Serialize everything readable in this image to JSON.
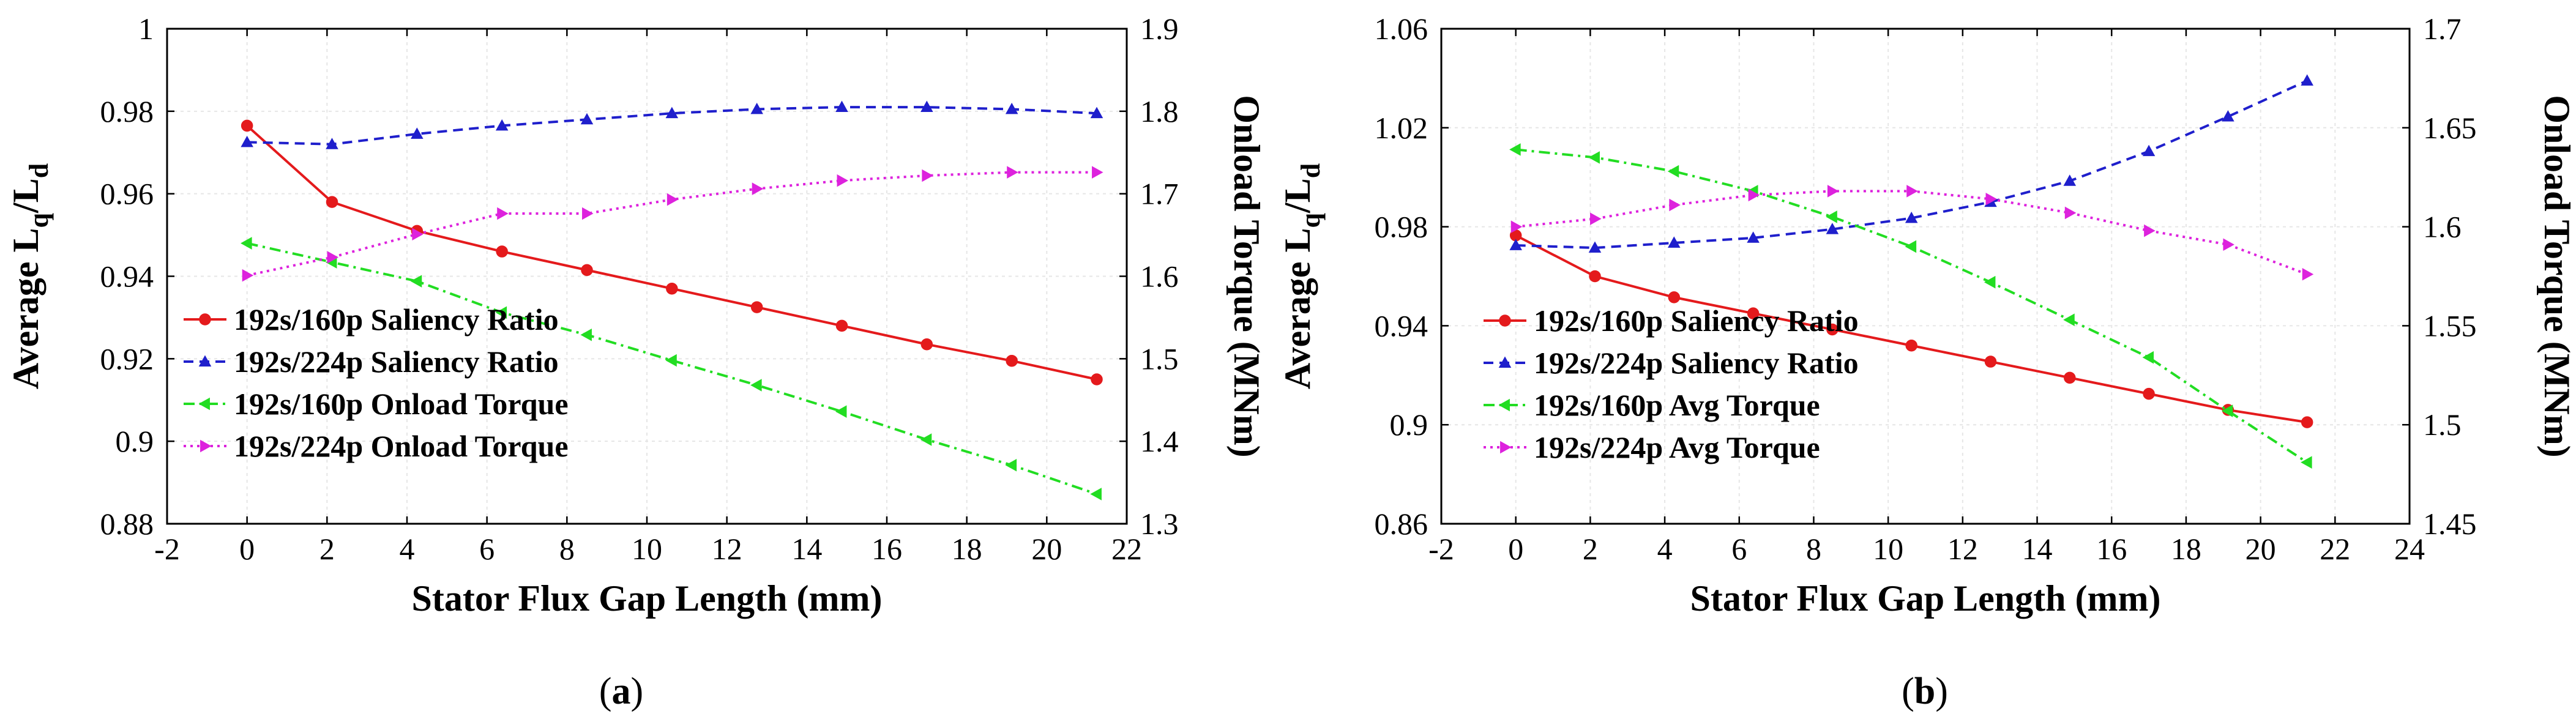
{
  "chart_data": [
    {
      "type": "line",
      "caption": "a",
      "xlabel": "Stator Flux Gap Length (mm)",
      "ylabel_main": "Average L",
      "ylabel_sub1": "q",
      "ylabel_mid": "/L",
      "ylabel_sub2": "d",
      "y2label": "Onload Torque (MNm)",
      "xlim": [
        -2,
        22
      ],
      "ylim": [
        0.88,
        1.0
      ],
      "y2lim": [
        1.3,
        1.9
      ],
      "xticks": [
        "-2",
        "0",
        "2",
        "4",
        "6",
        "8",
        "10",
        "12",
        "14",
        "16",
        "18",
        "20",
        "22"
      ],
      "yticks": [
        "0.88",
        "0.9",
        "0.92",
        "0.94",
        "0.96",
        "0.98",
        "1"
      ],
      "y2ticks": [
        "1.3",
        "1.4",
        "1.5",
        "1.6",
        "1.7",
        "1.8",
        "1.9"
      ],
      "x": [
        0,
        2.125,
        4.25,
        6.375,
        8.5,
        10.625,
        12.75,
        14.875,
        17,
        19.125,
        21.25
      ],
      "series": [
        {
          "name": "192s/160p Saliency Ratio",
          "axis": "left",
          "color": "#e41a1c",
          "dash": "solid",
          "marker": "circle",
          "values": [
            0.9765,
            0.958,
            0.951,
            0.946,
            0.9415,
            0.937,
            0.9325,
            0.928,
            0.9235,
            0.9195,
            0.915
          ]
        },
        {
          "name": "192s/224p Saliency Ratio",
          "axis": "left",
          "color": "#1f1fcc",
          "dash": "dashed",
          "marker": "triangle-up",
          "values": [
            0.9725,
            0.972,
            0.9745,
            0.9765,
            0.978,
            0.9795,
            0.9805,
            0.981,
            0.981,
            0.9805,
            0.9795
          ]
        },
        {
          "name": "192s/160p Onload Torque",
          "axis": "right",
          "color": "#22dd22",
          "dash": "dashdot",
          "marker": "triangle-left",
          "values": [
            1.64,
            1.617,
            1.594,
            1.556,
            1.529,
            1.498,
            1.468,
            1.436,
            1.402,
            1.371,
            1.336
          ]
        },
        {
          "name": "192s/224p Onload Torque",
          "axis": "right",
          "color": "#dd22dd",
          "dash": "dotted",
          "marker": "triangle-right",
          "values": [
            1.601,
            1.623,
            1.651,
            1.676,
            1.676,
            1.693,
            1.706,
            1.716,
            1.722,
            1.726,
            1.726
          ]
        }
      ]
    },
    {
      "type": "line",
      "caption": "b",
      "xlabel": "Stator Flux Gap Length (mm)",
      "ylabel_main": "Average L",
      "ylabel_sub1": "q",
      "ylabel_mid": "/L",
      "ylabel_sub2": "d",
      "y2label": "Onload Torque (MNm)",
      "xlim": [
        -2,
        24
      ],
      "ylim": [
        0.86,
        1.06
      ],
      "y2lim": [
        1.45,
        1.7
      ],
      "xticks": [
        "-2",
        "0",
        "2",
        "4",
        "6",
        "8",
        "10",
        "12",
        "14",
        "16",
        "18",
        "20",
        "22",
        "24"
      ],
      "yticks": [
        "0.86",
        "0.9",
        "0.94",
        "0.98",
        "1.02",
        "1.06"
      ],
      "y2ticks": [
        "1.45",
        "1.5",
        "1.55",
        "1.6",
        "1.65",
        "1.7"
      ],
      "x": [
        0,
        2.125,
        4.25,
        6.375,
        8.5,
        10.625,
        12.75,
        14.875,
        17,
        19.125,
        21.25
      ],
      "series": [
        {
          "name": "192s/160p Saliency Ratio",
          "axis": "left",
          "color": "#e41a1c",
          "dash": "solid",
          "marker": "circle",
          "values": [
            0.9765,
            0.96,
            0.9515,
            0.945,
            0.9385,
            0.932,
            0.9255,
            0.919,
            0.9125,
            0.906,
            0.901
          ]
        },
        {
          "name": "192s/224p Saliency Ratio",
          "axis": "left",
          "color": "#1f1fcc",
          "dash": "dashed",
          "marker": "triangle-up",
          "values": [
            0.9725,
            0.9715,
            0.9735,
            0.9755,
            0.979,
            0.9835,
            0.99,
            0.9985,
            1.0105,
            1.0245,
            1.039
          ]
        },
        {
          "name": "192s/160p Avg Torque",
          "axis": "right",
          "color": "#22dd22",
          "dash": "dashdot",
          "marker": "triangle-left",
          "values": [
            1.639,
            1.635,
            1.628,
            1.618,
            1.605,
            1.59,
            1.572,
            1.553,
            1.534,
            1.507,
            1.481
          ]
        },
        {
          "name": "192s/224p Avg Torque",
          "axis": "right",
          "color": "#dd22dd",
          "dash": "dotted",
          "marker": "triangle-right",
          "values": [
            1.6,
            1.604,
            1.611,
            1.616,
            1.618,
            1.618,
            1.614,
            1.607,
            1.598,
            1.591,
            1.576
          ]
        }
      ]
    }
  ]
}
